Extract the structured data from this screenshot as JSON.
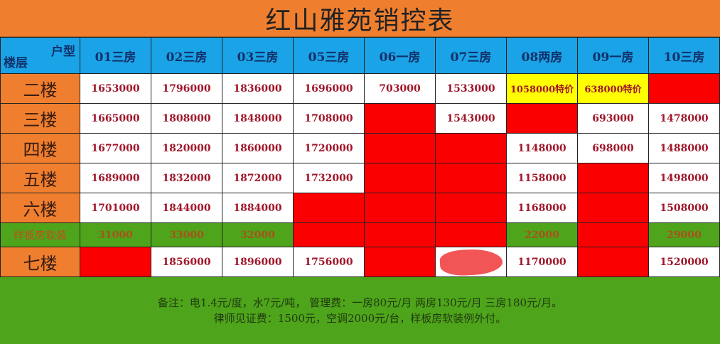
{
  "title": "红山雅苑销控表",
  "corner": {
    "type_label": "户型",
    "floor_label": "楼层"
  },
  "columns": [
    "01三房",
    "02三房",
    "03三房",
    "05三房",
    "06一房",
    "07三房",
    "08两房",
    "09一房",
    "10三房"
  ],
  "colors": {
    "title_bg": "#ef7f2f",
    "header_bg": "#1aa3e6",
    "sold": "#fb0000",
    "special": "#ffff00",
    "sample_bg": "#4ea41a"
  },
  "rows": [
    {
      "floor": "二楼",
      "type": "row",
      "cells": [
        {
          "v": "1653000"
        },
        {
          "v": "1796000"
        },
        {
          "v": "1836000"
        },
        {
          "v": "1696000"
        },
        {
          "v": "703000"
        },
        {
          "v": "1533000"
        },
        {
          "v": "1058000特价",
          "status": "special"
        },
        {
          "v": "638000特价",
          "status": "special"
        },
        {
          "status": "sold"
        }
      ]
    },
    {
      "floor": "三楼",
      "type": "row",
      "cells": [
        {
          "v": "1665000"
        },
        {
          "v": "1808000"
        },
        {
          "v": "1848000"
        },
        {
          "v": "1708000"
        },
        {
          "status": "sold"
        },
        {
          "v": "1543000"
        },
        {
          "status": "sold"
        },
        {
          "v": "693000"
        },
        {
          "v": "1478000"
        }
      ]
    },
    {
      "floor": "四楼",
      "type": "row",
      "cells": [
        {
          "v": "1677000"
        },
        {
          "v": "1820000"
        },
        {
          "v": "1860000"
        },
        {
          "v": "1720000"
        },
        {
          "status": "sold"
        },
        {
          "status": "sold"
        },
        {
          "v": "1148000"
        },
        {
          "v": "698000"
        },
        {
          "v": "1488000"
        }
      ]
    },
    {
      "floor": "五楼",
      "type": "row",
      "cells": [
        {
          "v": "1689000"
        },
        {
          "v": "1832000"
        },
        {
          "v": "1872000"
        },
        {
          "v": "1732000"
        },
        {
          "status": "sold"
        },
        {
          "status": "sold"
        },
        {
          "v": "1158000"
        },
        {
          "status": "sold"
        },
        {
          "v": "1498000"
        }
      ]
    },
    {
      "floor": "六楼",
      "type": "row",
      "cells": [
        {
          "v": "1701000"
        },
        {
          "v": "1844000"
        },
        {
          "v": "1884000"
        },
        {
          "status": "sold"
        },
        {
          "status": "sold"
        },
        {
          "status": "sold"
        },
        {
          "v": "1168000"
        },
        {
          "status": "sold"
        },
        {
          "v": "1508000"
        }
      ]
    },
    {
      "floor": "样板房软装",
      "type": "sample",
      "cells": [
        {
          "v": "31000"
        },
        {
          "v": "33000"
        },
        {
          "v": "32000"
        },
        {
          "status": "sold"
        },
        {
          "status": "sold"
        },
        {
          "status": "sold"
        },
        {
          "v": "22000"
        },
        {
          "status": "sold"
        },
        {
          "v": "29000"
        }
      ]
    },
    {
      "floor": "七楼",
      "type": "row",
      "cells": [
        {
          "status": "sold"
        },
        {
          "v": "1856000"
        },
        {
          "v": "1896000"
        },
        {
          "v": "1756000"
        },
        {
          "status": "sold"
        },
        {
          "status": "redacted"
        },
        {
          "v": "1170000"
        },
        {
          "status": "sold"
        },
        {
          "v": "1520000"
        }
      ]
    }
  ],
  "footer": {
    "line1": "备注：电1.4元/度，水7元/吨，  管理费：一房80元/月   两房130元/月   三房180元/月。",
    "line2": "律师见证费：1500元，空调2000元/台，样板房软装例外付。"
  }
}
